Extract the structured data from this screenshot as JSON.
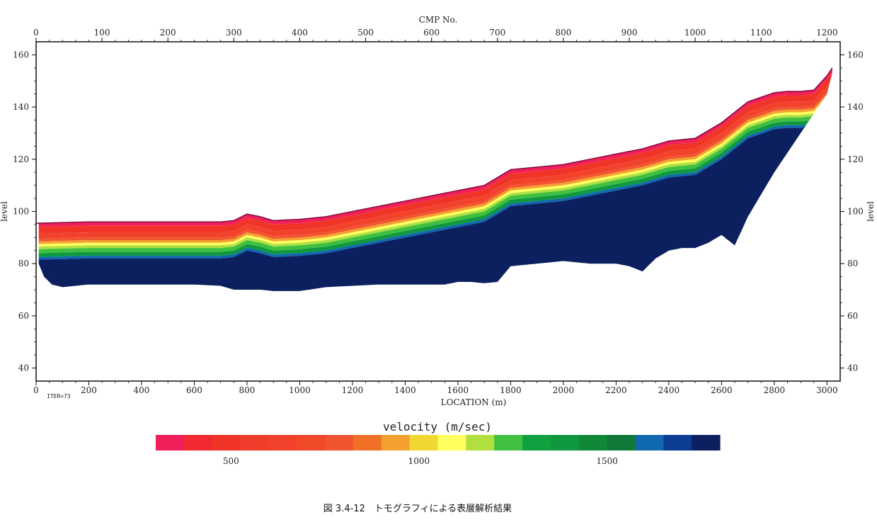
{
  "chart_data": {
    "type": "heatmap",
    "title": "",
    "top_axis": {
      "label": "CMP No.",
      "ticks": [
        0,
        100,
        200,
        300,
        400,
        500,
        600,
        700,
        800,
        900,
        1000,
        1100,
        1200
      ],
      "range": [
        0,
        1200
      ]
    },
    "bottom_axis": {
      "label": "LOCATION (m)",
      "ticks": [
        0,
        200,
        400,
        600,
        800,
        1000,
        1200,
        1400,
        1600,
        1800,
        2000,
        2200,
        2400,
        2600,
        2800,
        3000
      ],
      "range": [
        0,
        3000
      ]
    },
    "y_axis": {
      "label": "level",
      "ticks": [
        40,
        60,
        80,
        100,
        120,
        140,
        160
      ],
      "range": [
        35,
        165
      ]
    },
    "iteration_label": "ITER=73",
    "surface": {
      "x": [
        0,
        200,
        400,
        600,
        700,
        750,
        800,
        850,
        900,
        1000,
        1100,
        1200,
        1300,
        1400,
        1500,
        1600,
        1700,
        1800,
        1900,
        2000,
        2100,
        2200,
        2300,
        2400,
        2500,
        2600,
        2700,
        2800,
        2850,
        2900,
        2950,
        3000,
        3020
      ],
      "level": [
        95.5,
        96,
        96,
        96,
        96,
        96.5,
        99,
        98,
        96.5,
        97,
        98,
        100,
        102,
        104,
        106,
        108,
        110,
        116,
        117,
        118,
        120,
        122,
        124,
        127,
        128,
        134,
        142,
        145.5,
        146,
        146,
        146.5,
        152,
        155
      ]
    },
    "base": {
      "x": [
        0,
        10,
        30,
        60,
        100,
        150,
        200,
        300,
        400,
        500,
        600,
        700,
        750,
        800,
        850,
        900,
        1000,
        1100,
        1200,
        1300,
        1400,
        1500,
        1550,
        1600,
        1650,
        1700,
        1750,
        1800,
        1900,
        2000,
        2100,
        2200,
        2250,
        2300,
        2350,
        2400,
        2450,
        2500,
        2550,
        2600,
        2650,
        2700,
        2800,
        2900,
        3000,
        3020
      ],
      "level": [
        95.5,
        80,
        75,
        72,
        71,
        71.5,
        72,
        72,
        72,
        72,
        72,
        71.5,
        70,
        70,
        70,
        69.5,
        69.5,
        71,
        71.5,
        72,
        72,
        72,
        72,
        73,
        73,
        72.5,
        73,
        79,
        80,
        81,
        80,
        80,
        79,
        77,
        82,
        85,
        86,
        86,
        88,
        91,
        87,
        98,
        115,
        130,
        145,
        153
      ]
    },
    "velocity_layers": [
      {
        "velocity": 300,
        "offset": 0.0
      },
      {
        "velocity": 450,
        "offset": 1.5
      },
      {
        "velocity": 600,
        "offset": 4.0
      },
      {
        "velocity": 800,
        "offset": 6.0
      },
      {
        "velocity": 900,
        "offset": 7.0
      },
      {
        "velocity": 1050,
        "offset": 8.0
      },
      {
        "velocity": 1150,
        "offset": 9.0
      },
      {
        "velocity": 1250,
        "offset": 10.0
      },
      {
        "velocity": 1400,
        "offset": 11.5
      },
      {
        "velocity": 1600,
        "offset": 13.0
      },
      {
        "velocity": 1750,
        "offset": 14.0
      }
    ],
    "colorbar": {
      "title": "velocity (m/sec)",
      "range": [
        300,
        1800
      ],
      "ticks": [
        500,
        1000,
        1500
      ],
      "colors": [
        "#f0205a",
        "#f02a30",
        "#f03528",
        "#f03c2a",
        "#f2422c",
        "#f04a2a",
        "#f05530",
        "#f07028",
        "#f4a030",
        "#f0d830",
        "#ffff60",
        "#b0e040",
        "#40c040",
        "#10a040",
        "#109840",
        "#108838",
        "#107838",
        "#1068b0",
        "#0c3c94",
        "#0c2060"
      ],
      "cell_ranges": [
        [
          300,
          375
        ],
        [
          375,
          450
        ],
        [
          450,
          525
        ],
        [
          525,
          600
        ],
        [
          600,
          675
        ],
        [
          675,
          750
        ],
        [
          750,
          825
        ],
        [
          825,
          900
        ],
        [
          900,
          975
        ],
        [
          975,
          1050
        ],
        [
          1050,
          1125
        ],
        [
          1125,
          1200
        ],
        [
          1200,
          1275
        ],
        [
          1275,
          1350
        ],
        [
          1350,
          1425
        ],
        [
          1425,
          1500
        ],
        [
          1500,
          1575
        ],
        [
          1575,
          1650
        ],
        [
          1650,
          1725
        ],
        [
          1725,
          1800
        ]
      ]
    }
  },
  "caption": "図 3.4-12　トモグラフィによる表層解析結果"
}
